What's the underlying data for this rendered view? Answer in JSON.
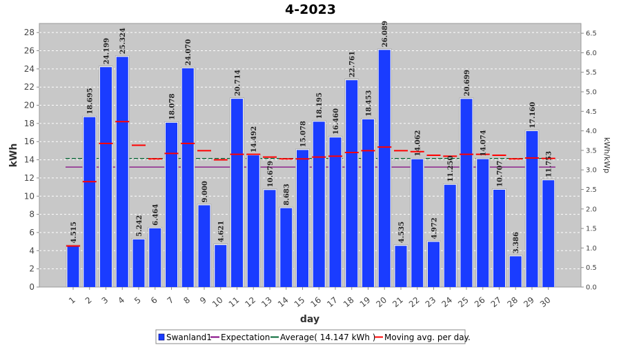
{
  "chart_data": {
    "type": "bar",
    "title": "4-2023",
    "xlabel": "day",
    "ylabel": "kWh",
    "y2label": "kWh/kWp",
    "ylim": [
      0,
      29
    ],
    "y2lim": [
      0,
      6.75
    ],
    "yticks": [
      0,
      2,
      4,
      6,
      8,
      10,
      12,
      14,
      16,
      18,
      20,
      22,
      24,
      26,
      28
    ],
    "y2ticks": [
      "0.0",
      "0.5",
      "1.0",
      "1.5",
      "2.0",
      "2.5",
      "3.0",
      "3.5",
      "4.0",
      "4.5",
      "5.0",
      "5.5",
      "6.0",
      "6.5"
    ],
    "categories": [
      "1",
      "2",
      "3",
      "4",
      "5",
      "6",
      "7",
      "8",
      "9",
      "10",
      "11",
      "12",
      "13",
      "14",
      "15",
      "16",
      "17",
      "18",
      "19",
      "20",
      "21",
      "22",
      "23",
      "24",
      "25",
      "26",
      "27",
      "28",
      "29",
      "30"
    ],
    "series": [
      {
        "name": "Swanland1",
        "color": "#1a3cff",
        "values": [
          4.515,
          18.695,
          24.199,
          25.324,
          5.242,
          6.464,
          18.078,
          24.07,
          9.0,
          4.621,
          20.714,
          14.492,
          10.679,
          8.683,
          15.078,
          18.195,
          16.46,
          22.761,
          18.453,
          26.089,
          4.535,
          14.062,
          4.972,
          11.25,
          20.699,
          14.074,
          10.707,
          3.386,
          17.16,
          11.753
        ],
        "labels": [
          "4.515",
          "18.695",
          "24.199",
          "25.324",
          "5.242",
          "6.464",
          "18.078",
          "24.070",
          "9.000",
          "4.621",
          "20.714",
          "14.492",
          "10.679",
          "8.683",
          "15.078",
          "18.195",
          "16.460",
          "22.761",
          "18.453",
          "26.089",
          "4.535",
          "14.062",
          "4.972",
          "11.250",
          "20.699",
          "14.074",
          "10.707",
          "3.386",
          "17.160",
          "11.753"
        ]
      },
      {
        "name": "Moving avg. per day.",
        "color": "#ff0000",
        "values": [
          4.515,
          11.6,
          15.8,
          18.2,
          15.6,
          14.1,
          14.7,
          15.8,
          15.0,
          14.0,
          14.6,
          14.6,
          14.3,
          14.1,
          14.1,
          14.3,
          14.4,
          14.8,
          15.0,
          15.4,
          15.0,
          14.9,
          14.5,
          14.4,
          14.6,
          14.6,
          14.5,
          14.1,
          14.2,
          14.147
        ]
      }
    ],
    "expectation": {
      "label": "Expectation",
      "value": 13.2,
      "color": "#800080"
    },
    "average": {
      "label": "Average( 14.147 kWh )",
      "value": 14.147,
      "color": "#006633"
    },
    "legend_position": "bottom",
    "grid": true
  }
}
